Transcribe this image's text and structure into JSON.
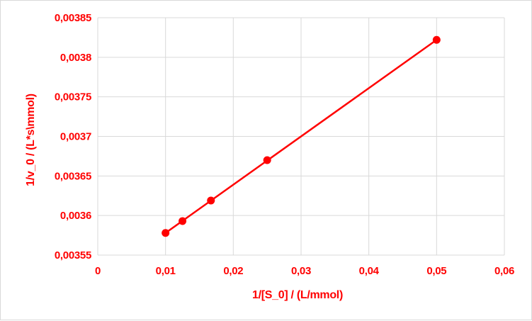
{
  "colors": {
    "series": "#ff0000",
    "text": "#ff0000",
    "grid": "#d9d9d9",
    "border": "#d9d9d9"
  },
  "chart_data": {
    "type": "scatter",
    "title": "",
    "xlabel": "1/[S_0] / (L/mmol)",
    "ylabel": "1/v_0 / (L*s\\mmol)",
    "xlim": [
      0,
      0.06
    ],
    "ylim": [
      0.00355,
      0.00385
    ],
    "x_ticks": [
      0,
      0.01,
      0.02,
      0.03,
      0.04,
      0.05,
      0.06
    ],
    "y_ticks": [
      0.00355,
      0.0036,
      0.00365,
      0.0037,
      0.00375,
      0.0038,
      0.00385
    ],
    "x_tick_labels": [
      "0",
      "0,01",
      "0,02",
      "0,03",
      "0,04",
      "0,05",
      "0,06"
    ],
    "y_tick_labels": [
      "0,00355",
      "0,0036",
      "0,00365",
      "0,0037",
      "0,00375",
      "0,0038",
      "0,00385"
    ],
    "grid": true,
    "legend": "none",
    "series": [
      {
        "x": [
          0.01,
          0.0125,
          0.0167,
          0.025,
          0.05
        ],
        "y": [
          0.003578,
          0.003593,
          0.003619,
          0.00367,
          0.003822
        ]
      }
    ],
    "trendline": {
      "from": [
        0.01,
        0.003578
      ],
      "to": [
        0.05,
        0.003822
      ]
    }
  }
}
